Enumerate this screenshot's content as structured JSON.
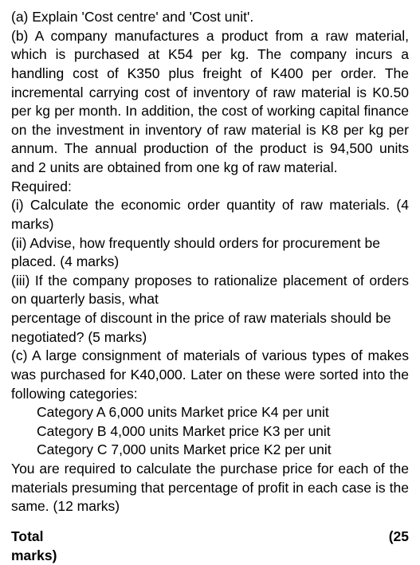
{
  "a": "(a) Explain 'Cost centre' and 'Cost unit'.",
  "b_intro": "(b) A company manufactures a product from a raw material, which is purchased at K54 per kg. The company incurs a handling cost of K350 plus freight of K400 per order. The incremental carrying cost of inventory of raw material is K0.50 per kg per month. In addition, the cost of working capital finance on the investment in inventory of raw material is K8 per kg per annum. The annual production of the product is 94,500 units and 2 units are obtained from one kg of raw material.",
  "required": "Required:",
  "b_i": "(i) Calculate the economic order quantity of raw materials.                       (4 marks)",
  "b_ii": "(ii) Advise, how frequently should orders for procurement be placed.       (4 marks)",
  "b_iii_1": "(iii) If the company proposes to rationalize placement of orders on quarterly basis, what",
  "b_iii_2": "percentage of discount in the price of raw materials should be negotiated?       (5 marks)",
  "c_intro": "(c) A large consignment of materials of various types of makes was purchased for K40,000. Later on these were sorted into the following categories:",
  "cat_a": "Category A 6,000 units Market price K4 per unit",
  "cat_b": "Category B 4,000 units Market price K3 per unit",
  "cat_c": "Category C 7,000 units Market price K2 per unit",
  "c_req": "You are required to calculate the purchase price for each of the materials presuming that percentage of profit in each case is the same.                               (12 marks)",
  "total_label": "Total marks)",
  "total_marks": "(25"
}
